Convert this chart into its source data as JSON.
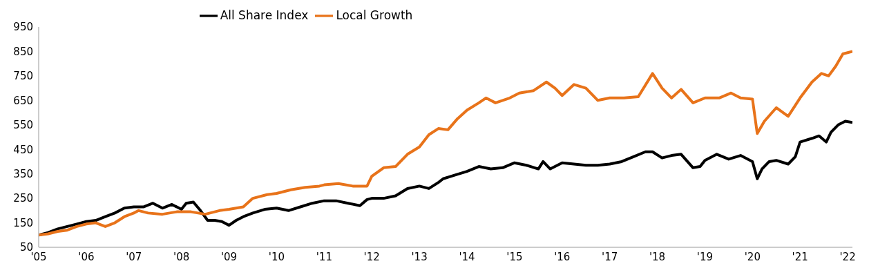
{
  "chart_data": {
    "type": "line",
    "series": [
      {
        "name": "All Share Index",
        "color": "#000000",
        "x": [
          2005.0,
          2005.2,
          2005.4,
          2005.6,
          2005.8,
          2006.0,
          2006.2,
          2006.4,
          2006.6,
          2006.8,
          2007.0,
          2007.2,
          2007.4,
          2007.6,
          2007.8,
          2008.0,
          2008.1,
          2008.25,
          2008.4,
          2008.55,
          2008.7,
          2008.85,
          2009.0,
          2009.15,
          2009.3,
          2009.5,
          2009.75,
          2010.0,
          2010.25,
          2010.5,
          2010.75,
          2011.0,
          2011.25,
          2011.5,
          2011.75,
          2011.9,
          2012.0,
          2012.25,
          2012.5,
          2012.75,
          2013.0,
          2013.2,
          2013.4,
          2013.5,
          2013.75,
          2014.0,
          2014.25,
          2014.5,
          2014.75,
          2015.0,
          2015.25,
          2015.5,
          2015.6,
          2015.75,
          2016.0,
          2016.25,
          2016.5,
          2016.75,
          2017.0,
          2017.25,
          2017.5,
          2017.75,
          2017.9,
          2018.1,
          2018.3,
          2018.5,
          2018.75,
          2018.9,
          2019.0,
          2019.25,
          2019.5,
          2019.75,
          2020.0,
          2020.1,
          2020.2,
          2020.35,
          2020.5,
          2020.75,
          2020.9,
          2021.0,
          2021.25,
          2021.4,
          2021.55,
          2021.65,
          2021.8,
          2021.95,
          2022.1
        ],
        "values": [
          100,
          110,
          125,
          135,
          145,
          155,
          160,
          175,
          190,
          210,
          215,
          215,
          230,
          210,
          225,
          205,
          230,
          235,
          200,
          160,
          160,
          155,
          140,
          160,
          175,
          190,
          205,
          210,
          200,
          215,
          230,
          240,
          240,
          230,
          220,
          245,
          250,
          250,
          260,
          290,
          300,
          290,
          315,
          330,
          345,
          360,
          380,
          370,
          375,
          395,
          385,
          370,
          400,
          370,
          395,
          390,
          385,
          385,
          390,
          400,
          420,
          440,
          440,
          415,
          425,
          430,
          375,
          380,
          405,
          430,
          410,
          425,
          400,
          330,
          370,
          400,
          405,
          390,
          420,
          480,
          495,
          505,
          480,
          520,
          550,
          565,
          560
        ]
      },
      {
        "name": "Local Growth",
        "color": "#e8731a",
        "x": [
          2005.0,
          2005.2,
          2005.4,
          2005.6,
          2005.8,
          2006.0,
          2006.2,
          2006.4,
          2006.6,
          2006.8,
          2007.0,
          2007.1,
          2007.3,
          2007.6,
          2007.9,
          2008.2,
          2008.5,
          2008.8,
          2009.0,
          2009.3,
          2009.5,
          2009.8,
          2010.0,
          2010.3,
          2010.6,
          2010.9,
          2011.0,
          2011.3,
          2011.6,
          2011.9,
          2012.0,
          2012.25,
          2012.5,
          2012.75,
          2013.0,
          2013.2,
          2013.4,
          2013.6,
          2013.8,
          2014.0,
          2014.25,
          2014.4,
          2014.6,
          2014.9,
          2015.1,
          2015.4,
          2015.67,
          2015.85,
          2016.0,
          2016.25,
          2016.5,
          2016.75,
          2017.0,
          2017.3,
          2017.6,
          2017.9,
          2018.1,
          2018.3,
          2018.5,
          2018.75,
          2019.0,
          2019.3,
          2019.55,
          2019.75,
          2020.0,
          2020.1,
          2020.25,
          2020.5,
          2020.75,
          2021.0,
          2021.25,
          2021.45,
          2021.6,
          2021.75,
          2021.9,
          2022.1
        ],
        "values": [
          100,
          105,
          115,
          120,
          135,
          145,
          150,
          135,
          150,
          175,
          190,
          200,
          190,
          185,
          195,
          195,
          185,
          200,
          205,
          215,
          250,
          265,
          270,
          285,
          295,
          300,
          305,
          310,
          300,
          300,
          340,
          375,
          380,
          430,
          460,
          510,
          535,
          530,
          575,
          610,
          640,
          660,
          640,
          660,
          680,
          690,
          725,
          700,
          670,
          715,
          700,
          650,
          660,
          660,
          665,
          760,
          700,
          660,
          695,
          640,
          660,
          660,
          680,
          660,
          655,
          515,
          565,
          620,
          585,
          660,
          725,
          760,
          750,
          790,
          840,
          850
        ]
      }
    ],
    "ylim": [
      50,
      950
    ],
    "yticks": [
      50,
      150,
      250,
      350,
      450,
      550,
      650,
      750,
      850,
      950
    ],
    "xlim": [
      2005,
      2022.1
    ],
    "xticks": [
      {
        "value": 2005,
        "label": "'05"
      },
      {
        "value": 2006,
        "label": "'06"
      },
      {
        "value": 2007,
        "label": "'07"
      },
      {
        "value": 2008,
        "label": "'08"
      },
      {
        "value": 2009,
        "label": "'09"
      },
      {
        "value": 2010,
        "label": "'10"
      },
      {
        "value": 2011,
        "label": "'11"
      },
      {
        "value": 2012,
        "label": "'12"
      },
      {
        "value": 2013,
        "label": "'13"
      },
      {
        "value": 2014,
        "label": "'14"
      },
      {
        "value": 2015,
        "label": "'15"
      },
      {
        "value": 2016,
        "label": "'16"
      },
      {
        "value": 2017,
        "label": "'17"
      },
      {
        "value": 2018,
        "label": "'18"
      },
      {
        "value": 2019,
        "label": "'19"
      },
      {
        "value": 2020,
        "label": "'20"
      },
      {
        "value": 2021,
        "label": "'21"
      },
      {
        "value": 2022,
        "label": "'22"
      }
    ],
    "grid": false,
    "legend": "top",
    "marker": "none",
    "line_style": "solid"
  }
}
